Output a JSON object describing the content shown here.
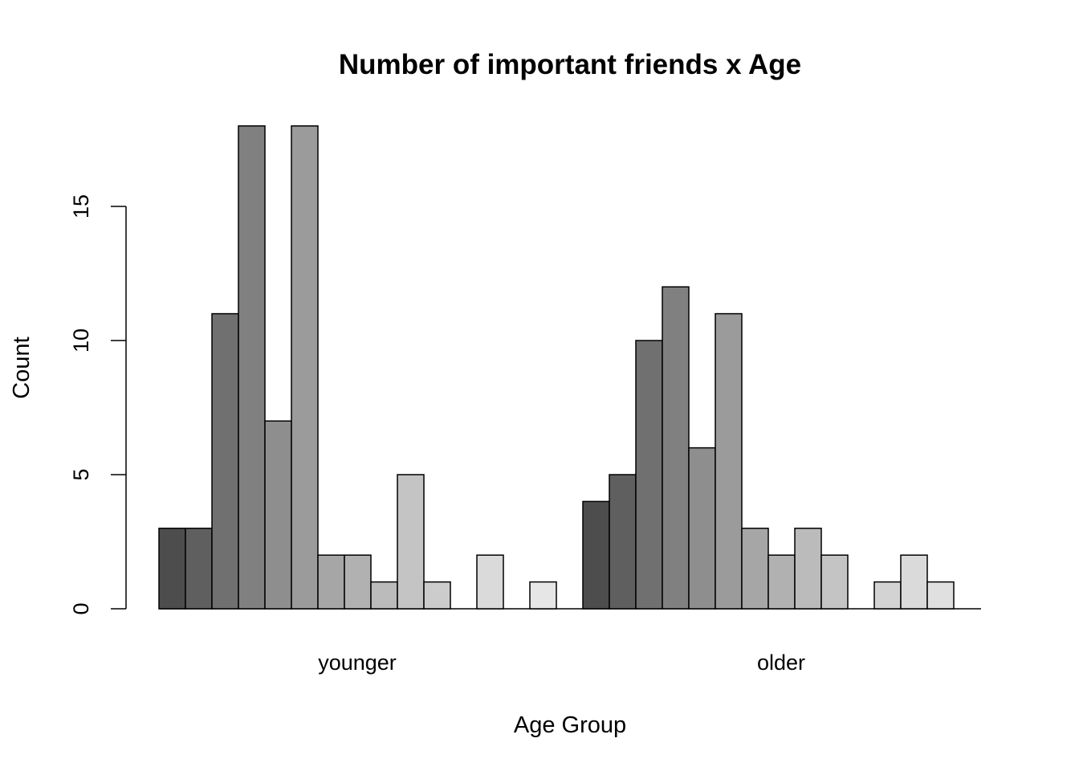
{
  "chart_data": {
    "type": "bar",
    "title": "Number of important friends x Age",
    "xlabel": "Age Group",
    "ylabel": "Count",
    "categories": [
      "younger",
      "older"
    ],
    "ylim": [
      0,
      18
    ],
    "yticks": [
      "0",
      "5",
      "10",
      "15"
    ],
    "grid": false,
    "legend": "none",
    "groups": [
      {
        "name": "younger",
        "values": [
          3,
          3,
          11,
          18,
          7,
          18,
          2,
          2,
          1,
          5,
          1,
          0,
          2,
          0,
          1
        ]
      },
      {
        "name": "older",
        "values": [
          4,
          5,
          10,
          12,
          6,
          11,
          3,
          2,
          3,
          2,
          0,
          1,
          2,
          1,
          0
        ]
      }
    ],
    "bar_colors": [
      "#4d4d4d",
      "#5f5f5f",
      "#707070",
      "#808080",
      "#8e8e8e",
      "#9b9b9b",
      "#a6a6a6",
      "#b1b1b1",
      "#bbbbbb",
      "#c4c4c4",
      "#cccccc",
      "#d3d3d3",
      "#dadada",
      "#e0e0e0",
      "#e6e6e6"
    ]
  }
}
